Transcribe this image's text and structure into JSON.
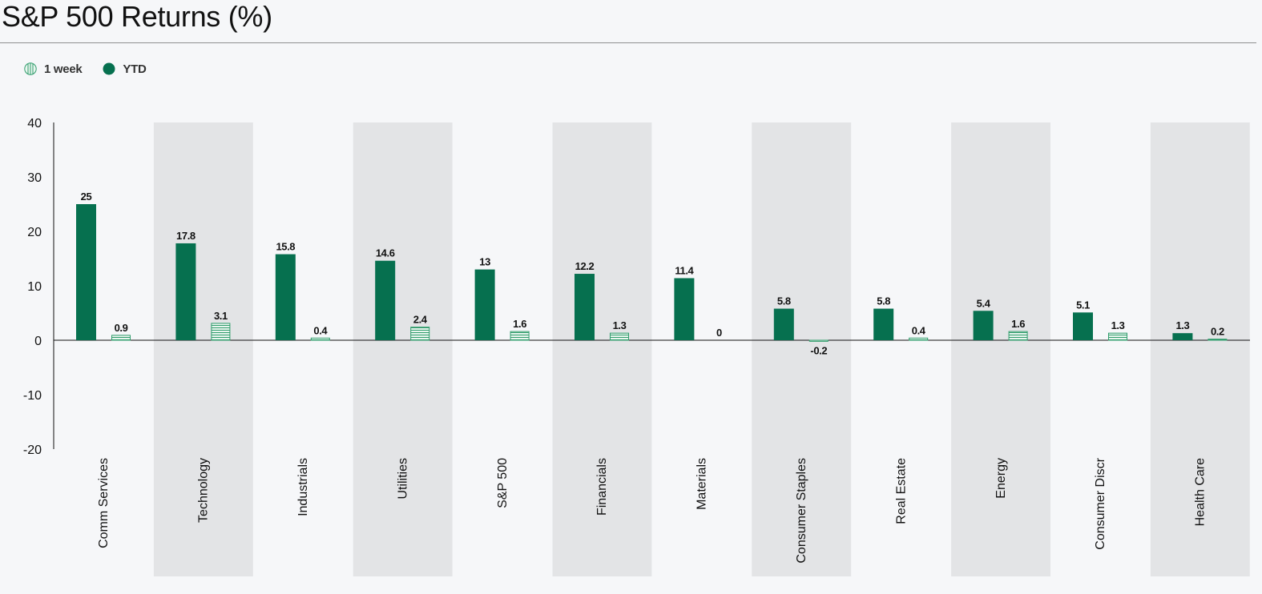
{
  "title": "S&P 500 Returns (%)",
  "colors": {
    "ytd": "#06704f",
    "week_fill": "#e9f6ef",
    "week_stripe": "#2f9c6b",
    "band": "#e3e4e6",
    "axis": "#111111"
  },
  "chart_data": {
    "type": "bar",
    "title": "S&P 500 Returns (%)",
    "xlabel": "",
    "ylabel": "",
    "ylim": [
      -20,
      40
    ],
    "yticks": [
      40,
      30,
      20,
      10,
      0,
      -10,
      -20
    ],
    "yticks_labels": [
      "40",
      "30",
      "20",
      "10",
      "0",
      "-10",
      "-20"
    ],
    "legend_position": "top-left",
    "grid": false,
    "categories": [
      "Comm Services",
      "Technology",
      "Industrials",
      "Utilities",
      "S&P 500",
      "Financials",
      "Materials",
      "Consumer Staples",
      "Real Estate",
      "Energy",
      "Consumer Discr",
      "Health Care"
    ],
    "series": [
      {
        "name": "YTD",
        "values": [
          25,
          17.8,
          15.8,
          14.6,
          13,
          12.2,
          11.4,
          5.8,
          5.8,
          5.4,
          5.1,
          1.3
        ],
        "labels": [
          "25",
          "17.8",
          "15.8",
          "14.6",
          "13",
          "12.2",
          "11.4",
          "5.8",
          "5.8",
          "5.4",
          "5.1",
          "1.3"
        ]
      },
      {
        "name": "1 week",
        "values": [
          0.9,
          3.1,
          0.4,
          2.4,
          1.6,
          1.3,
          0,
          -0.2,
          0.4,
          1.6,
          1.3,
          0.2
        ],
        "labels": [
          "0.9",
          "3.1",
          "0.4",
          "2.4",
          "1.6",
          "1.3",
          "0",
          "-0.2",
          "0.4",
          "1.6",
          "1.3",
          "0.2"
        ]
      }
    ]
  }
}
